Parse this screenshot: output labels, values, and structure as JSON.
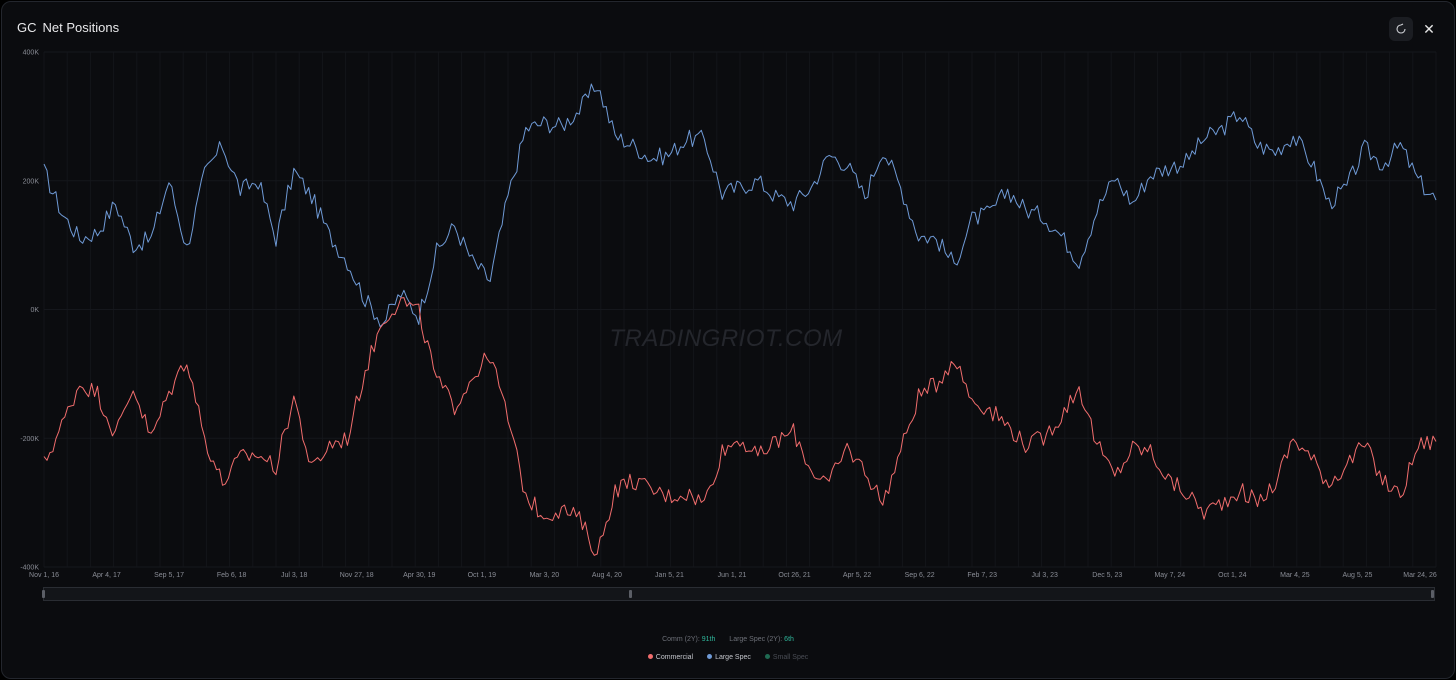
{
  "header": {
    "symbol": "GC",
    "title": "Net Positions"
  },
  "toolbar": {
    "refresh_icon": "refresh-icon",
    "close_icon": "close-icon",
    "close_glyph": "✕"
  },
  "watermark": "TRADINGRIOT.COM",
  "stats": {
    "comm_label": "Comm (2Y):",
    "comm_value": "91th",
    "large_label": "Large Spec (2Y):",
    "large_value": "6th"
  },
  "legend": [
    {
      "label": "Commercial",
      "color": "#f16d6d",
      "active": true
    },
    {
      "label": "Large Spec",
      "color": "#6f9ad6",
      "active": true
    },
    {
      "label": "Small Spec",
      "color": "#1f6a52",
      "active": false
    }
  ],
  "chart_data": {
    "type": "line",
    "title": "Net Positions",
    "ylim": [
      -400000,
      400000
    ],
    "y_ticks": [
      {
        "value": 400000,
        "label": "400K"
      },
      {
        "value": 200000,
        "label": "200K"
      },
      {
        "value": 0,
        "label": "0K"
      },
      {
        "value": -200000,
        "label": "-200K"
      },
      {
        "value": -400000,
        "label": "-400K"
      }
    ],
    "x_tick_labels": [
      "Nov 1, 16",
      "Apr 4, 17",
      "Sep 5, 17",
      "Feb 6, 18",
      "Jul 3, 18",
      "Nov 27, 18",
      "Apr 30, 19",
      "Oct 1, 19",
      "Mar 3, 20",
      "Aug 4, 20",
      "Jan 5, 21",
      "Jun 1, 21",
      "Oct 26, 21",
      "Apr 5, 22",
      "Sep 6, 22",
      "Feb 7, 23",
      "Jul 3, 23",
      "Dec 5, 23",
      "May 7, 24",
      "Oct 1, 24",
      "Mar 4, 25",
      "Aug 5, 25",
      "Mar 24, 26"
    ],
    "grid": true,
    "legend_position": "bottom-center",
    "series": [
      {
        "name": "Large Spec",
        "color": "#6f9ad6",
        "values": [
          215000,
          150000,
          110000,
          120000,
          165000,
          100000,
          110000,
          200000,
          95000,
          210000,
          255000,
          185000,
          200000,
          110000,
          215000,
          175000,
          115000,
          75000,
          15000,
          -20000,
          25000,
          -10000,
          90000,
          130000,
          75000,
          45000,
          175000,
          280000,
          290000,
          285000,
          310000,
          350000,
          270000,
          255000,
          235000,
          240000,
          265000,
          265000,
          180000,
          190000,
          200000,
          175000,
          165000,
          190000,
          240000,
          225000,
          175000,
          250000,
          190000,
          115000,
          110000,
          70000,
          140000,
          150000,
          185000,
          155000,
          145000,
          115000,
          75000,
          155000,
          205000,
          165000,
          210000,
          220000,
          230000,
          265000,
          280000,
          305000,
          255000,
          245000,
          270000,
          230000,
          165000,
          190000,
          250000,
          225000,
          255000,
          200000,
          170000
        ]
      },
      {
        "name": "Commercial",
        "color": "#f16d6d",
        "values": [
          -240000,
          -180000,
          -115000,
          -130000,
          -195000,
          -120000,
          -200000,
          -130000,
          -75000,
          -200000,
          -270000,
          -230000,
          -225000,
          -245000,
          -135000,
          -250000,
          -210000,
          -200000,
          -95000,
          -15000,
          15000,
          -5000,
          -110000,
          -150000,
          -105000,
          -70000,
          -170000,
          -290000,
          -320000,
          -310000,
          -325000,
          -380000,
          -280000,
          -265000,
          -280000,
          -290000,
          -285000,
          -300000,
          -220000,
          -200000,
          -230000,
          -205000,
          -190000,
          -250000,
          -270000,
          -215000,
          -250000,
          -300000,
          -220000,
          -135000,
          -115000,
          -75000,
          -140000,
          -155000,
          -180000,
          -210000,
          -200000,
          -165000,
          -120000,
          -210000,
          -260000,
          -215000,
          -220000,
          -265000,
          -285000,
          -315000,
          -300000,
          -280000,
          -300000,
          -270000,
          -200000,
          -230000,
          -270000,
          -240000,
          -210000,
          -265000,
          -290000,
          -210000,
          -205000
        ]
      },
      {
        "name": "Small Spec",
        "color": "#1f6a52",
        "visible": false,
        "values": []
      }
    ]
  }
}
